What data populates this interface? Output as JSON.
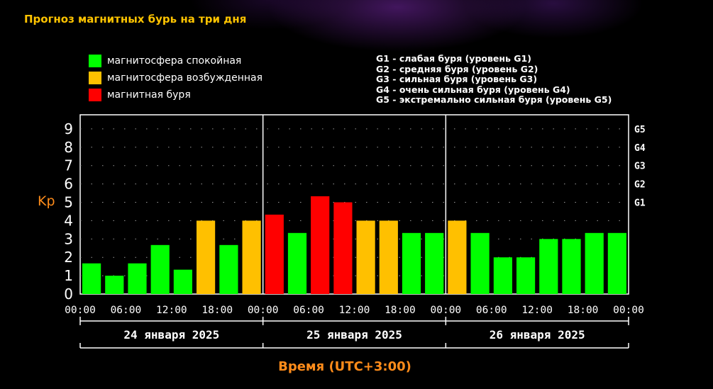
{
  "title": "Прогноз магнитных бурь на три дня",
  "legend": [
    {
      "label": "магнитосфера спокойная",
      "color": "#00ff00"
    },
    {
      "label": "магнитосфера возбужденная",
      "color": "#ffc000"
    },
    {
      "label": "магнитная буря",
      "color": "#ff0000"
    }
  ],
  "g_levels": [
    "G1 - слабая буря (уровень G1)",
    "G2 - средняя буря (уровень G2)",
    "G3 - сильная буря (уровень G3)",
    "G4 - очень сильная буря (уровень G4)",
    "G5 - экстремально сильная буря (уровень G5)"
  ],
  "chart_data": {
    "type": "bar",
    "ylabel": "Kp",
    "xlabel": "Время (UTC+3:00)",
    "ylim": [
      0,
      9
    ],
    "y_ticks": [
      0,
      1,
      2,
      3,
      4,
      5,
      6,
      7,
      8,
      9
    ],
    "right_ticks": [
      {
        "label": "G1",
        "kp": 5
      },
      {
        "label": "G2",
        "kp": 6
      },
      {
        "label": "G3",
        "kp": 7
      },
      {
        "label": "G4",
        "kp": 8
      },
      {
        "label": "G5",
        "kp": 9
      }
    ],
    "x_tick_labels": [
      "00:00",
      "06:00",
      "12:00",
      "18:00",
      "00:00",
      "06:00",
      "12:00",
      "18:00",
      "00:00",
      "06:00",
      "12:00",
      "18:00",
      "00:00"
    ],
    "days": [
      "24 января 2025",
      "25 января 2025",
      "26 января 2025"
    ],
    "colors": {
      "calm": "#00ff00",
      "excited": "#ffc000",
      "storm": "#ff0000"
    },
    "values": [
      1.67,
      1.0,
      1.67,
      2.67,
      1.33,
      4.0,
      2.67,
      4.0,
      4.33,
      3.33,
      5.33,
      5.0,
      4.0,
      4.0,
      3.33,
      3.33,
      4.0,
      3.33,
      2.0,
      2.0,
      3.0,
      3.0,
      3.33,
      3.33
    ],
    "levels": [
      "calm",
      "calm",
      "calm",
      "calm",
      "calm",
      "excited",
      "calm",
      "excited",
      "storm",
      "calm",
      "storm",
      "storm",
      "excited",
      "excited",
      "calm",
      "calm",
      "excited",
      "calm",
      "calm",
      "calm",
      "calm",
      "calm",
      "calm",
      "calm"
    ],
    "grid": true
  }
}
